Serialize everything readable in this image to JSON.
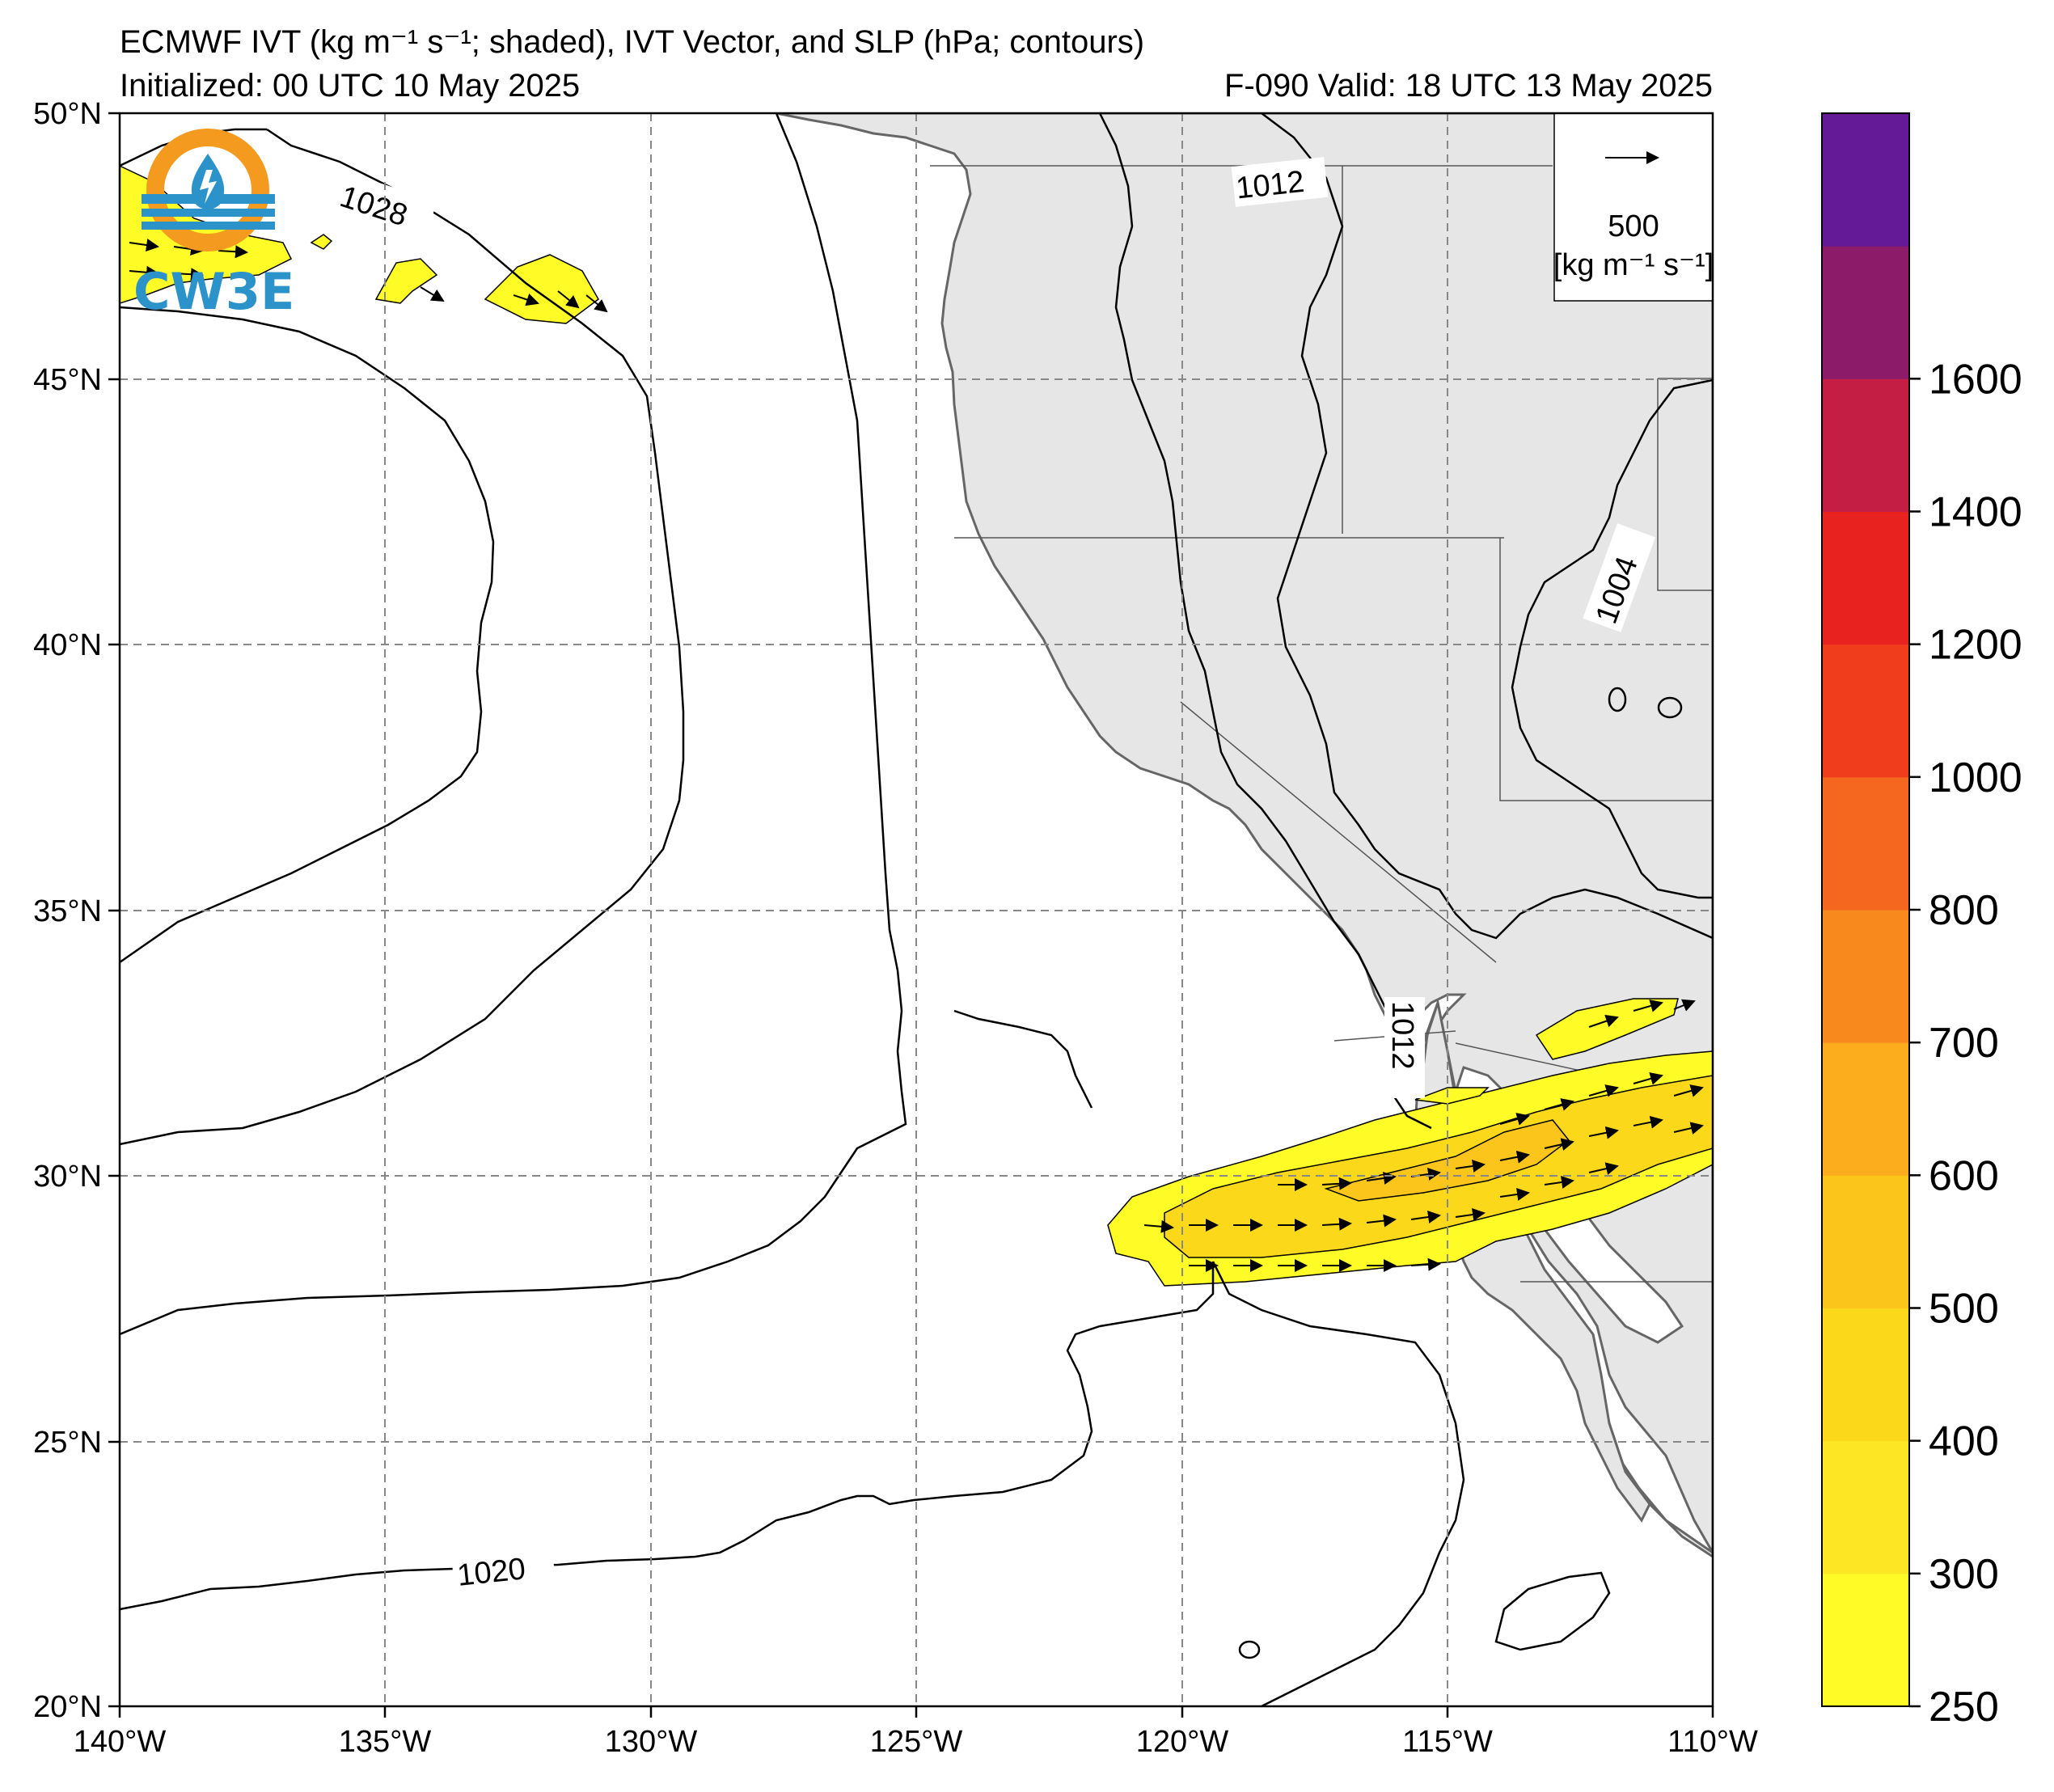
{
  "header": {
    "title_line1": "ECMWF IVT (kg m⁻¹ s⁻¹; shaded), IVT Vector, and SLP (hPa; contours)",
    "initialized": "Initialized: 00 UTC 10 May 2025",
    "valid": "F-090  Valid: 18 UTC 13 May 2025"
  },
  "logo": {
    "text": "CW3E",
    "colors": {
      "ring": "#f39a1f",
      "blue": "#2b93c9"
    }
  },
  "map": {
    "lon_labels": [
      "140°W",
      "135°W",
      "130°W",
      "125°W",
      "120°W",
      "115°W",
      "110°W"
    ],
    "lat_labels": [
      "50°N",
      "45°N",
      "40°N",
      "35°N",
      "30°N",
      "25°N",
      "20°N"
    ],
    "lon_range": [
      -140,
      -110
    ],
    "lat_range": [
      20,
      50
    ],
    "gridlines": true,
    "land_color": "#e6e6e6",
    "coast_color": "#666666",
    "contour_labels": [
      "1028",
      "1012",
      "1004",
      "1012",
      "1020"
    ]
  },
  "vector_legend": {
    "value": "500",
    "unit": "[kg m⁻¹ s⁻¹]"
  },
  "colorbar": {
    "ticks": [
      "250",
      "300",
      "400",
      "500",
      "600",
      "700",
      "800",
      "1000",
      "1200",
      "1400",
      "1600"
    ],
    "levels": [
      250,
      300,
      400,
      500,
      600,
      700,
      800,
      1000,
      1200,
      1400,
      1600,
      1800
    ],
    "colors": [
      "#fffb26",
      "#fde725",
      "#fcd81b",
      "#fbc51c",
      "#fbad1d",
      "#f88a1d",
      "#f5661f",
      "#f03d1c",
      "#e8231f",
      "#c41e45",
      "#8c1c6a",
      "#641a96"
    ]
  }
}
